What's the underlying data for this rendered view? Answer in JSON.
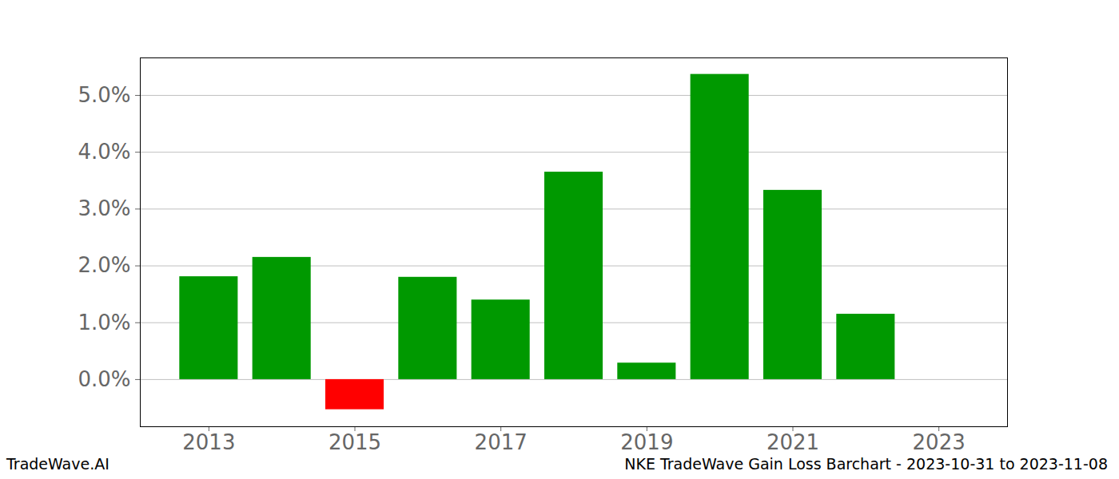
{
  "chart_data": {
    "type": "bar",
    "title": "NKE TradeWave Gain Loss Barchart - 2023-10-31 to 2023-11-08",
    "caption": "TradeWave.AI",
    "x": [
      2013,
      2014,
      2015,
      2016,
      2017,
      2018,
      2019,
      2020,
      2021,
      2022,
      2023
    ],
    "values": [
      1.81,
      2.15,
      -0.53,
      1.8,
      1.4,
      3.65,
      0.29,
      5.37,
      3.33,
      1.15,
      0
    ],
    "colors": [
      "#009900",
      "#009900",
      "#ff0000",
      "#009900",
      "#009900",
      "#009900",
      "#009900",
      "#009900",
      "#009900",
      "#009900",
      "#009900"
    ],
    "xlim": [
      2012.06,
      2023.94
    ],
    "xticks": [
      2013,
      2015,
      2017,
      2019,
      2021,
      2023
    ],
    "ylim": [
      -0.83,
      5.66
    ],
    "yticks": [
      {
        "value": 0,
        "label": "0.0%"
      },
      {
        "value": 1,
        "label": "1.0%"
      },
      {
        "value": 2,
        "label": "2.0%"
      },
      {
        "value": 3,
        "label": "3.0%"
      },
      {
        "value": 4,
        "label": "4.0%"
      },
      {
        "value": 5,
        "label": "5.0%"
      }
    ],
    "grid": true
  }
}
